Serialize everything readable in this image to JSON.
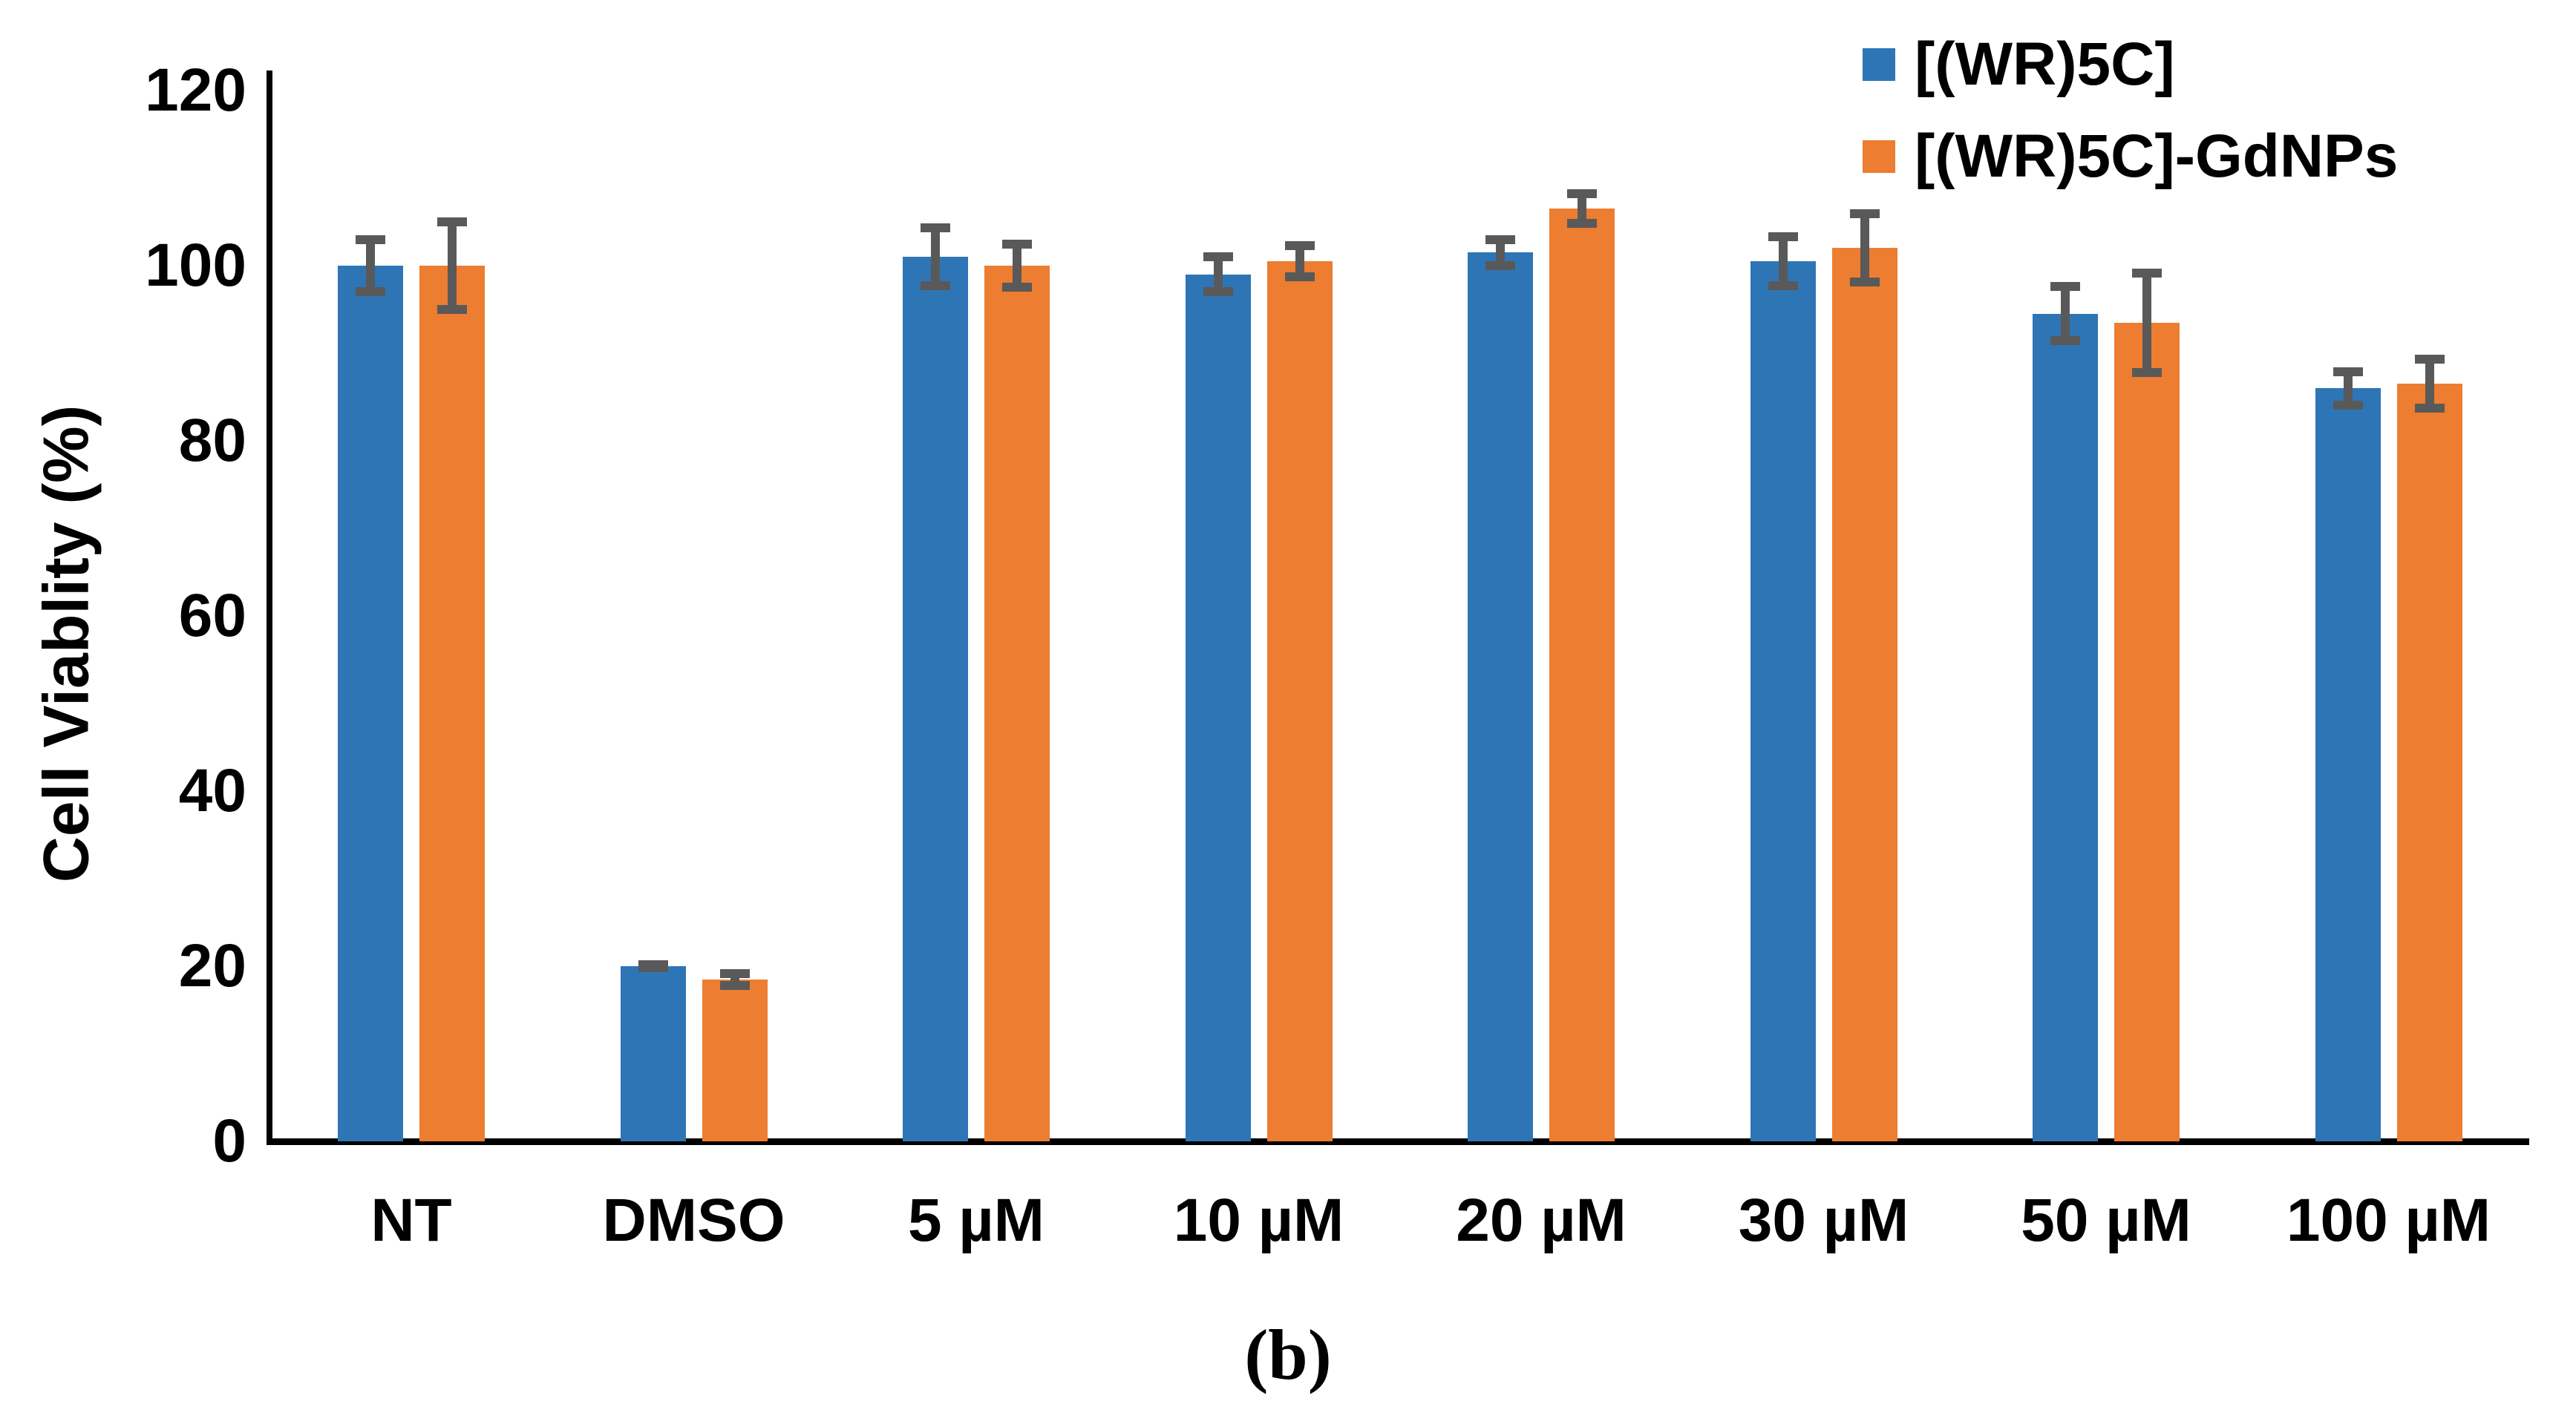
{
  "figure_label": "(b)",
  "chart_data": {
    "type": "bar",
    "ylabel": "Cell Viablity (%)",
    "ylim": [
      0,
      120
    ],
    "yticks": [
      0,
      20,
      40,
      60,
      80,
      100,
      120
    ],
    "grid": false,
    "legend_position": "top-right",
    "error_bar_color": "#595959",
    "axis_color": "#000000",
    "categories": [
      "NT",
      "DMSO",
      "5 µM",
      "10 µM",
      "20 µM",
      "30 µM",
      "50 µM",
      "100 µM"
    ],
    "series": [
      {
        "name": "[(WR)5C]",
        "color": "#2E75B6",
        "values": [
          100,
          20,
          101,
          99,
          101.5,
          100.5,
          94.5,
          86
        ],
        "errors": [
          3.5,
          0.7,
          3.8,
          2.5,
          2.0,
          3.3,
          3.6,
          2.4
        ]
      },
      {
        "name": "[(WR)5C]-GdNPs",
        "color": "#ED7D31",
        "values": [
          100,
          18.5,
          100,
          100.5,
          106.5,
          102,
          93.5,
          86.5
        ],
        "errors": [
          5.5,
          1.2,
          3.0,
          2.3,
          2.2,
          4.4,
          6.2,
          3.3
        ]
      }
    ]
  }
}
